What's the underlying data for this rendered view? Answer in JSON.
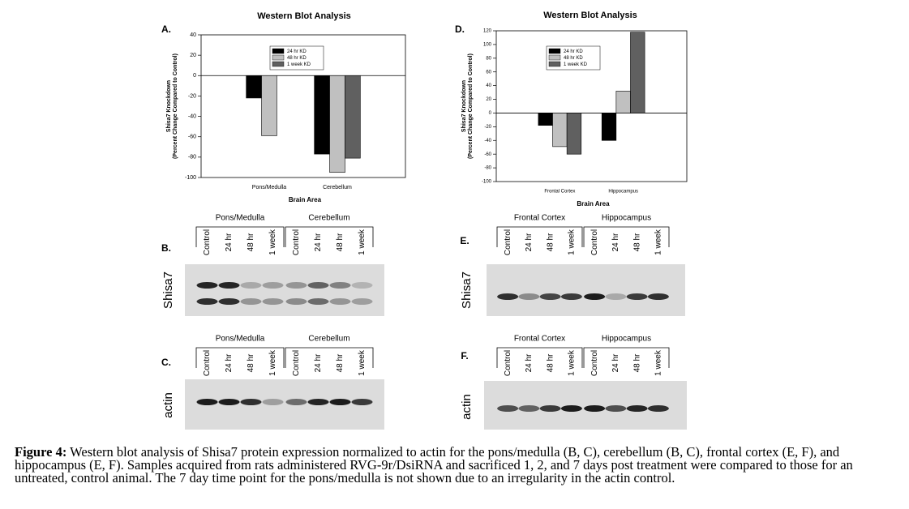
{
  "chart_data": [
    {
      "type": "bar",
      "panel": "A.",
      "title": "Western Blot Analysis",
      "ylabel": [
        "Shisa7 Knockdown",
        "(Percent Change Compared to Control)"
      ],
      "xlabel": "Brain Area",
      "categories": [
        "Pons/Medulla",
        "Cerebellum"
      ],
      "series": [
        {
          "name": "24 hr KD",
          "color": "#000000",
          "values": [
            -22,
            -77
          ]
        },
        {
          "name": "48 hr KD",
          "color": "#c0c0c0",
          "values": [
            -59,
            -95
          ]
        },
        {
          "name": "1 week KD",
          "color": "#606060",
          "values": [
            null,
            -81
          ]
        }
      ],
      "ylim": [
        -100,
        40
      ],
      "yticks": [
        -100,
        -80,
        -60,
        -40,
        -20,
        0,
        20,
        40
      ],
      "legend": "top"
    },
    {
      "type": "bar",
      "panel": "D.",
      "title": "Western Blot Analysis",
      "ylabel": [
        "Shisa7 Knockdown",
        "(Percent Change Compared to Control)"
      ],
      "xlabel": "Brain Area",
      "categories": [
        "Frontal Cortex",
        "Hippocampus"
      ],
      "series": [
        {
          "name": "24 hr KD",
          "color": "#000000",
          "values": [
            -18,
            -40
          ]
        },
        {
          "name": "48 hr KD",
          "color": "#c0c0c0",
          "values": [
            -49,
            32
          ]
        },
        {
          "name": "1 week KD",
          "color": "#606060",
          "values": [
            -60,
            118
          ]
        }
      ],
      "ylim": [
        -100,
        120
      ],
      "yticks": [
        -100,
        -80,
        -60,
        -40,
        -20,
        0,
        20,
        40,
        60,
        80,
        100,
        120
      ],
      "legend": "top"
    }
  ],
  "blots": [
    {
      "letter": "B.",
      "row_label": "Shisa7",
      "groups": [
        {
          "name": "Pons/Medulla",
          "lanes": [
            "Control",
            "24 hr",
            "48 hr",
            "1 week"
          ]
        },
        {
          "name": "Cerebellum",
          "lanes": [
            "Control",
            "24 hr",
            "48 hr",
            "1 week"
          ]
        }
      ]
    },
    {
      "letter": "C.",
      "row_label": "actin",
      "groups": [
        {
          "name": "Pons/Medulla",
          "lanes": [
            "Control",
            "24 hr",
            "48 hr",
            "1 week"
          ]
        },
        {
          "name": "Cerebellum",
          "lanes": [
            "Control",
            "24 hr",
            "48 hr",
            "1 week"
          ]
        }
      ]
    },
    {
      "letter": "E.",
      "row_label": "Shisa7",
      "groups": [
        {
          "name": "Frontal Cortex",
          "lanes": [
            "Control",
            "24 hr",
            "48 hr",
            "1 week"
          ]
        },
        {
          "name": "Hippocampus",
          "lanes": [
            "Control",
            "24 hr",
            "48 hr",
            "1 week"
          ]
        }
      ]
    },
    {
      "letter": "F.",
      "row_label": "actin",
      "groups": [
        {
          "name": "Frontal Cortex",
          "lanes": [
            "Control",
            "24 hr",
            "48 hr",
            "1 week"
          ]
        },
        {
          "name": "Hippocampus",
          "lanes": [
            "Control",
            "24 hr",
            "48 hr",
            "1 week"
          ]
        }
      ]
    }
  ],
  "caption": {
    "label": "Figure 4:",
    "text": "Western blot analysis of Shisa7 protein expression normalized to actin for the pons/medulla (B, C), cerebellum (B, C), frontal cortex (E, F), and hippocampus (E, F). Samples acquired from rats administered RVG-9r/DsiRNA and sacrificed 1, 2, and 7 days post treatment were compared to those for an untreated, control animal. The 7 day time point for the pons/medulla is not shown due to an irregularity in the actin control."
  }
}
